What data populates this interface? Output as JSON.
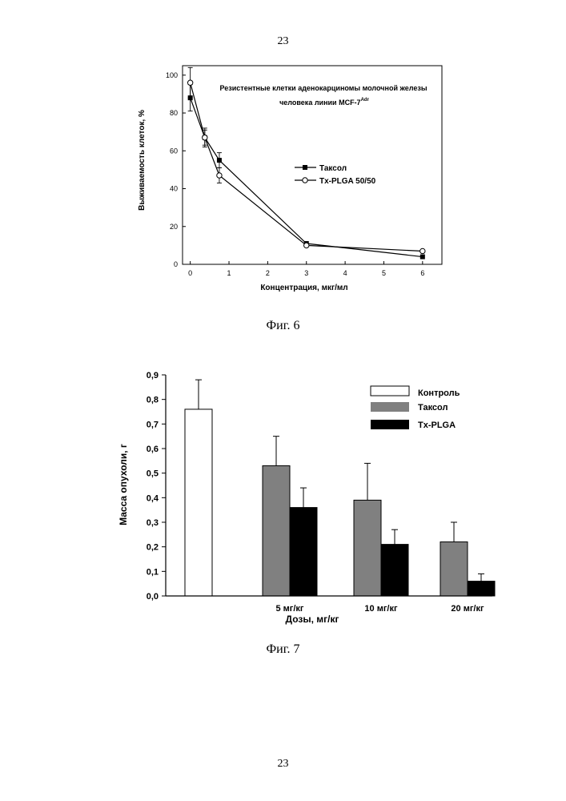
{
  "page": {
    "page_number_top": "23",
    "page_number_bottom": "23"
  },
  "figures": [
    {
      "caption": "Фиг. 6"
    },
    {
      "caption": "Фиг. 7"
    }
  ],
  "colors": {
    "taxol_bar": "#808080",
    "txplga_bar": "#000000",
    "control_bar": "#ffffff"
  },
  "chart_data": [
    {
      "type": "line",
      "title": "Резистентные клетки аденокарциномы молочной железы",
      "subtitle": "человека линии MCF-7",
      "subtitle_superscript": "Adr",
      "xlabel": "Концентрация, мкг/мл",
      "ylabel": "Выживаемость клеток, %",
      "xlim": [
        -0.2,
        6.5
      ],
      "ylim": [
        0,
        105
      ],
      "xticks": [
        0,
        1,
        2,
        3,
        4,
        5,
        6
      ],
      "yticks": [
        0,
        20,
        40,
        60,
        80,
        100
      ],
      "legend_position": "center-right",
      "series": [
        {
          "name": "Таксол",
          "marker": "filled-square",
          "x": [
            0,
            0.375,
            0.75,
            3,
            6
          ],
          "y": [
            88,
            67,
            55,
            11,
            4
          ],
          "error": [
            7,
            5,
            4,
            0.5,
            0.5
          ]
        },
        {
          "name": "Tx-PLGA 50/50",
          "marker": "open-circle",
          "x": [
            0,
            0.375,
            0.75,
            3,
            6
          ],
          "y": [
            96,
            67,
            47,
            10,
            7
          ],
          "error": [
            8,
            4,
            4,
            0.5,
            0.5
          ]
        }
      ]
    },
    {
      "type": "bar",
      "xlabel": "Дозы, мг/кг",
      "ylabel": "Масса опухоли, г",
      "ylim": [
        0,
        0.9
      ],
      "yticks": [
        "0,0",
        "0,1",
        "0,2",
        "0,3",
        "0,4",
        "0,5",
        "0,6",
        "0,7",
        "0,8",
        "0,9"
      ],
      "categories": [
        "",
        "5 мг/кг",
        "10 мг/кг",
        "20 мг/кг"
      ],
      "legend_position": "top-right",
      "series": [
        {
          "name": "Контроль",
          "values": [
            0.76,
            null,
            null,
            null
          ],
          "error": [
            0.12,
            null,
            null,
            null
          ]
        },
        {
          "name": "Таксол",
          "values": [
            null,
            0.53,
            0.39,
            0.22
          ],
          "error": [
            null,
            0.12,
            0.15,
            0.08
          ]
        },
        {
          "name": "Tx-PLGA",
          "values": [
            null,
            0.36,
            0.21,
            0.06
          ],
          "error": [
            null,
            0.08,
            0.06,
            0.03
          ]
        }
      ]
    }
  ]
}
